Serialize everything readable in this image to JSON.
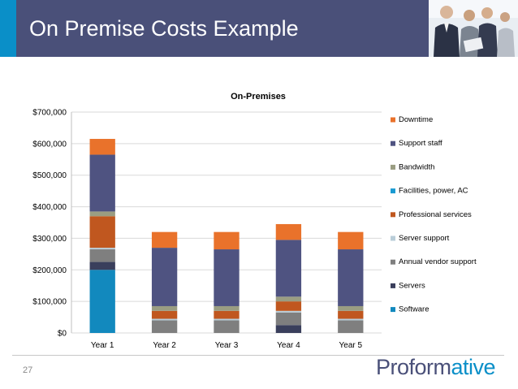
{
  "slide": {
    "title": "On Premise Costs Example",
    "page_number": "27",
    "logo_text": "Proformative",
    "title_bar_color": "#4a5079",
    "accent_color": "#0a8fc8"
  },
  "chart_data": {
    "type": "bar",
    "stacked": true,
    "title": "On-Premises",
    "xlabel": "",
    "ylabel": "",
    "categories": [
      "Year 1",
      "Year 2",
      "Year 3",
      "Year 4",
      "Year 5"
    ],
    "ylim": [
      0,
      700000
    ],
    "yticks": [
      0,
      100000,
      200000,
      300000,
      400000,
      500000,
      600000,
      700000
    ],
    "ytick_labels": [
      "$0",
      "$100,000",
      "$200,000",
      "$300,000",
      "$400,000",
      "$500,000",
      "$600,000",
      "$700,000"
    ],
    "legend_position": "right",
    "grid": "horizontal",
    "series": [
      {
        "name": "Software",
        "color": "#1289be",
        "values": [
          200000,
          0,
          0,
          0,
          0
        ]
      },
      {
        "name": "Servers",
        "color": "#3a3f5c",
        "values": [
          25000,
          0,
          0,
          25000,
          0
        ]
      },
      {
        "name": "Annual vendor support",
        "color": "#7f7f7f",
        "values": [
          40000,
          40000,
          40000,
          40000,
          40000
        ]
      },
      {
        "name": "Server support",
        "color": "#b9cdd8",
        "values": [
          5000,
          5000,
          5000,
          5000,
          5000
        ]
      },
      {
        "name": "Professional services",
        "color": "#c0571f",
        "values": [
          100000,
          25000,
          25000,
          30000,
          25000
        ]
      },
      {
        "name": "Facilities, power, AC",
        "color": "#1a9ad2",
        "values": [
          0,
          0,
          0,
          0,
          0
        ]
      },
      {
        "name": "Bandwidth",
        "color": "#9a9d82",
        "values": [
          15000,
          15000,
          15000,
          15000,
          15000
        ]
      },
      {
        "name": "Support staff",
        "color": "#4f5381",
        "values": [
          180000,
          185000,
          180000,
          180000,
          180000
        ]
      },
      {
        "name": "Downtime",
        "color": "#e9722b",
        "values": [
          50000,
          50000,
          55000,
          50000,
          55000
        ]
      }
    ],
    "legend_order": [
      "Downtime",
      "Support staff",
      "Bandwidth",
      "Facilities, power, AC",
      "Professional services",
      "Server support",
      "Annual vendor support",
      "Servers",
      "Software"
    ]
  }
}
